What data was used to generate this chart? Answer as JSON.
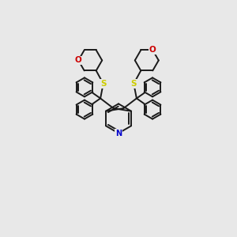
{
  "background_color": "#e8e8e8",
  "bond_color": "#1a1a1a",
  "bond_width": 1.4,
  "N_color": "#0000cc",
  "O_color": "#cc0000",
  "S_color": "#cccc00",
  "figsize": [
    3.0,
    3.0
  ],
  "dpi": 100,
  "xlim": [
    0,
    10
  ],
  "ylim": [
    0,
    10
  ]
}
